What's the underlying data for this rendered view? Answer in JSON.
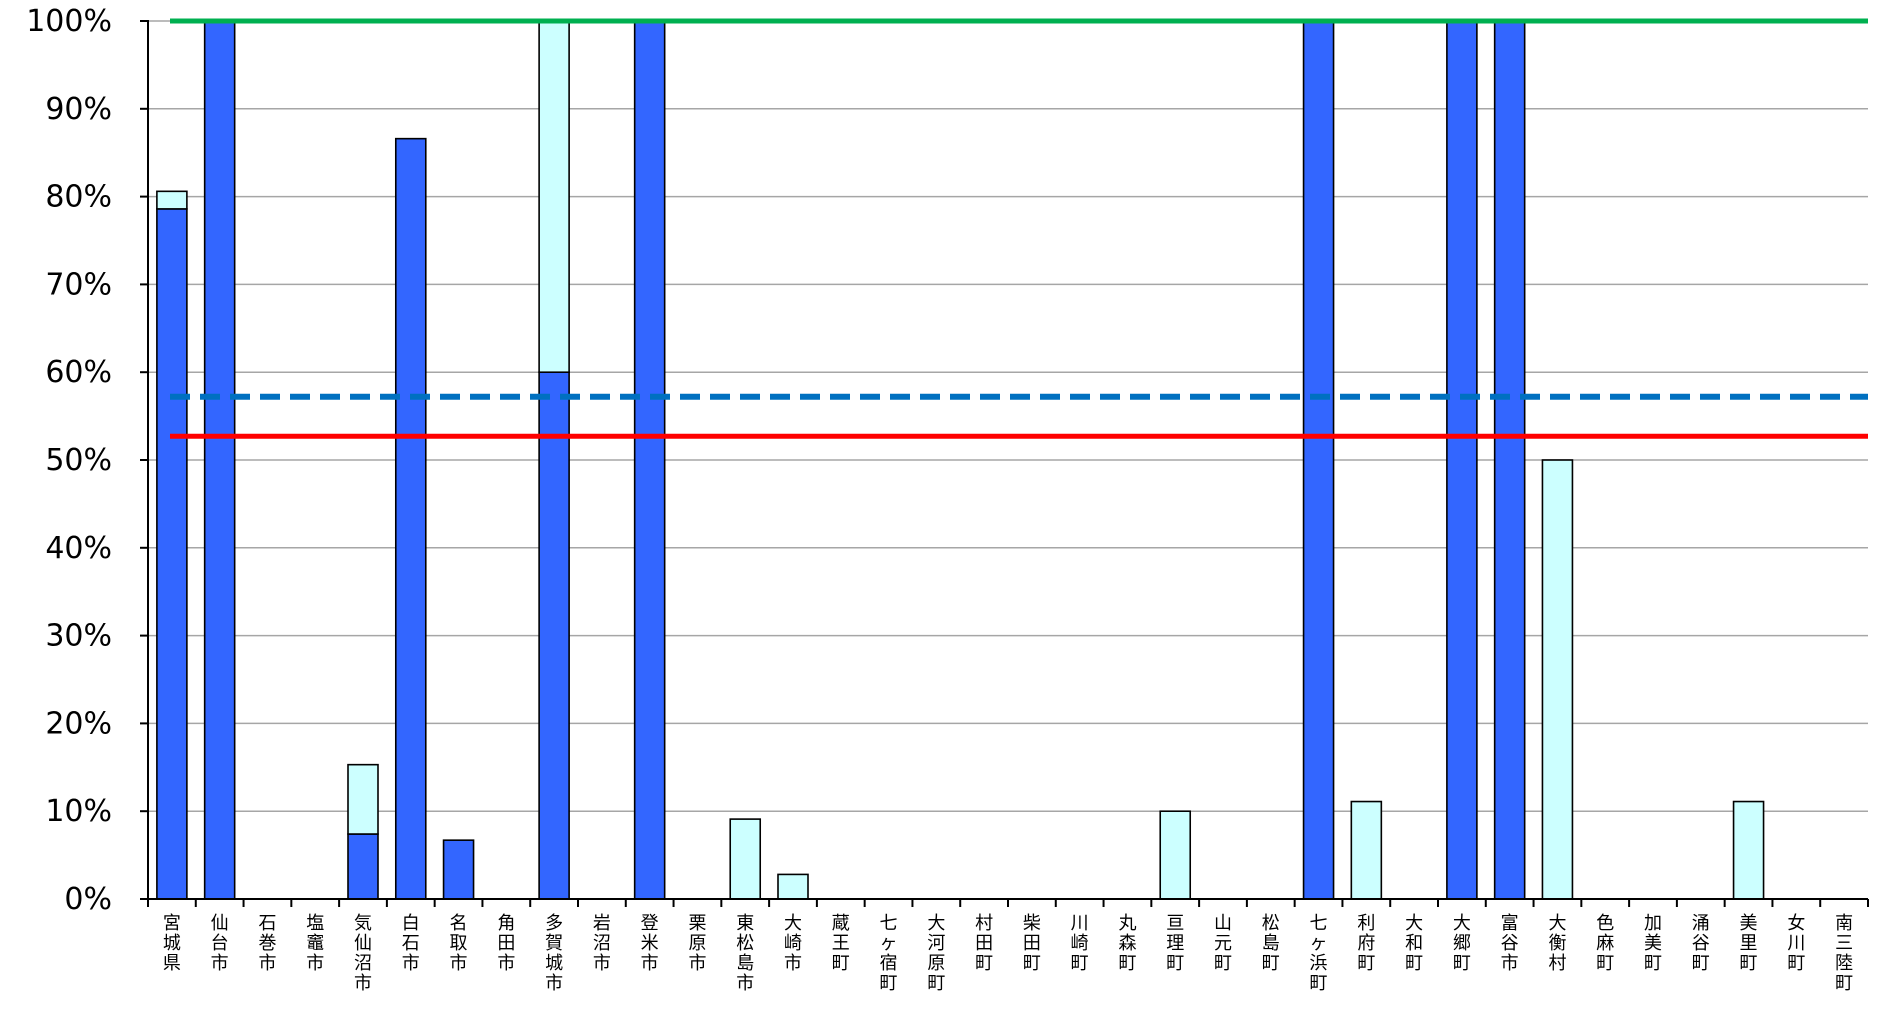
{
  "chart_data": {
    "type": "bar",
    "stacked": true,
    "ylim": [
      0,
      100
    ],
    "y_ticks": [
      "0%",
      "10%",
      "20%",
      "30%",
      "40%",
      "50%",
      "60%",
      "70%",
      "80%",
      "90%",
      "100%"
    ],
    "grid": true,
    "categories": [
      "宮城県",
      "仙台市",
      "石巻市",
      "塩竈市",
      "気仙沼市",
      "白石市",
      "名取市",
      "角田市",
      "多賀城市",
      "岩沼市",
      "登米市",
      "栗原市",
      "東松島市",
      "大崎市",
      "蔵王町",
      "七ヶ宿町",
      "大河原町",
      "村田町",
      "柴田町",
      "川崎町",
      "丸森町",
      "亘理町",
      "山元町",
      "松島町",
      "七ヶ浜町",
      "利府町",
      "大和町",
      "大郷町",
      "富谷市",
      "大衡村",
      "色麻町",
      "加美町",
      "涌谷町",
      "美里町",
      "女川町",
      "南三陸町"
    ],
    "series": [
      {
        "color": "#3366ff",
        "values": [
          78.6,
          100,
          0,
          0,
          7.4,
          86.6,
          6.7,
          0,
          60,
          0,
          100,
          0,
          0,
          0,
          0,
          0,
          0,
          0,
          0,
          0,
          0,
          0,
          0,
          0,
          100,
          0,
          0,
          100,
          100,
          0,
          0,
          0,
          0,
          0,
          0,
          0
        ]
      },
      {
        "color": "#ccffff",
        "values": [
          2.0,
          0,
          0,
          0,
          7.9,
          0,
          0,
          0,
          40,
          0,
          0,
          0,
          9.1,
          2.8,
          0,
          0,
          0,
          0,
          0,
          0,
          0,
          10.0,
          0,
          0,
          0,
          11.1,
          0,
          0,
          0,
          50.0,
          0,
          0,
          0,
          11.1,
          0,
          0
        ]
      }
    ],
    "reference_lines": [
      {
        "value": 100,
        "color": "#00b050",
        "style": "solid"
      },
      {
        "value": 57.2,
        "color": "#0070c0",
        "style": "dashed"
      },
      {
        "value": 52.7,
        "color": "#ff0000",
        "style": "solid"
      }
    ]
  }
}
